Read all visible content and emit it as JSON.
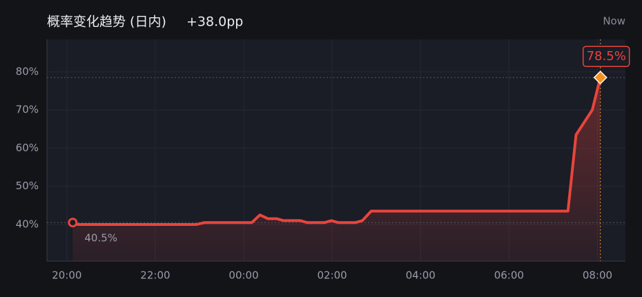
{
  "chart_data": {
    "type": "line",
    "title": "概率变化趋势 (日内)",
    "subtitle": "+38.0pp",
    "annotation": "Now",
    "x": [
      "20:08",
      "20:14",
      "22:56",
      "23:07",
      "00:11",
      "00:22",
      "00:33",
      "00:45",
      "00:54",
      "01:17",
      "01:26",
      "01:50",
      "01:59",
      "02:08",
      "02:32",
      "02:41",
      "02:53",
      "07:20",
      "07:31",
      "07:53",
      "08:04"
    ],
    "series": [
      {
        "color": "#e8453c",
        "values": [
          40.5,
          40.0,
          40.0,
          40.5,
          40.5,
          42.5,
          41.5,
          41.5,
          41.0,
          41.0,
          40.5,
          40.5,
          41.0,
          40.5,
          40.5,
          41.0,
          43.5,
          43.5,
          63.5,
          70.0,
          78.5
        ],
        "value_labels": [
          "40.5%",
          null,
          null,
          null,
          null,
          null,
          null,
          null,
          null,
          null,
          null,
          null,
          null,
          null,
          null,
          null,
          null,
          null,
          null,
          null,
          "78.5%"
        ]
      }
    ],
    "xlim": [
      "19:33",
      "08:38"
    ],
    "xticks": [
      "20:00",
      "22:00",
      "00:00",
      "02:00",
      "04:00",
      "06:00",
      "08:00"
    ],
    "ylim": [
      30.4,
      88.5
    ],
    "yticks": [
      {
        "value": 40,
        "label": "40%"
      },
      {
        "value": 50,
        "label": "50%"
      },
      {
        "value": 60,
        "label": "60%"
      },
      {
        "value": 70,
        "label": "70%"
      },
      {
        "value": 80,
        "label": "80%"
      }
    ],
    "grid": true,
    "end_marker_color": "#f5901e"
  }
}
